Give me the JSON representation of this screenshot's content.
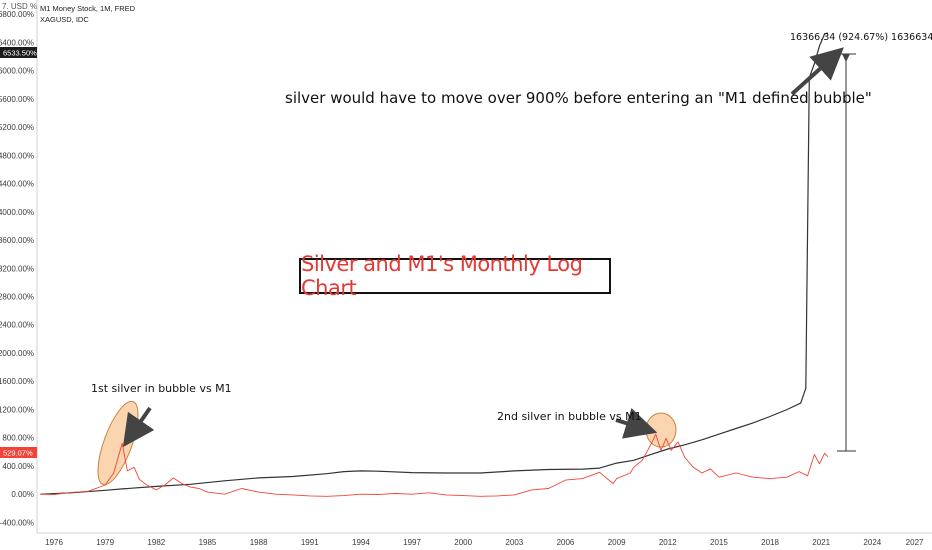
{
  "toolbar": {
    "menu_label": "7.",
    "currency_label": "USD",
    "percent_label": "%"
  },
  "legend": {
    "series_1": "M1 Money Stock, 1M, FRED",
    "series_2": "XAGUSD, IDC"
  },
  "badges": {
    "m1_value": "6533.50%",
    "silver_value": "529.07%"
  },
  "colors": {
    "m1": "#333333",
    "silver": "#f44336",
    "highlight": "#f8c796",
    "arrow": "#444444"
  },
  "annotations": {
    "title": "Silver and M1's Monthly Log Chart",
    "bubble_1": "1st silver in bubble vs M1",
    "bubble_2": "2nd silver in bubble vs M1",
    "headline": "silver would have to move over 900% before entering an \"M1 defined bubble\"",
    "measure": "16366.34 (924.67%) 1636634"
  },
  "chart_data": {
    "type": "line",
    "x_unit": "year",
    "y_unit": "percent",
    "xlim": [
      1975,
      2027.5
    ],
    "ylim": [
      -550,
      7000
    ],
    "x_ticks": [
      "1976",
      "1979",
      "1982",
      "1985",
      "1988",
      "1991",
      "1994",
      "1997",
      "2000",
      "2003",
      "2006",
      "2009",
      "2012",
      "2015",
      "2018",
      "2021",
      "2024",
      "2027"
    ],
    "y_ticks": [
      "6800.00%",
      "6400.00%",
      "6000.00%",
      "5600.00%",
      "5200.00%",
      "4800.00%",
      "4400.00%",
      "4000.00%",
      "3600.00%",
      "3200.00%",
      "2800.00%",
      "2400.00%",
      "2000.00%",
      "1600.00%",
      "1200.00%",
      "800.00%",
      "400.00%",
      "0.00%",
      "-400.00%"
    ],
    "y_tick_values": [
      6800,
      6400,
      6000,
      5600,
      5200,
      4800,
      4400,
      4000,
      3600,
      3200,
      2800,
      2400,
      2000,
      1600,
      1200,
      800,
      400,
      0,
      -400
    ],
    "series": [
      {
        "name": "M1 Money Stock, 1M, FRED",
        "points": [
          [
            1975.2,
            0
          ],
          [
            1977,
            20
          ],
          [
            1979,
            55
          ],
          [
            1980,
            75
          ],
          [
            1982,
            110
          ],
          [
            1984,
            140
          ],
          [
            1986,
            190
          ],
          [
            1988,
            230
          ],
          [
            1990,
            250
          ],
          [
            1992,
            290
          ],
          [
            1993,
            320
          ],
          [
            1994,
            330
          ],
          [
            1995,
            325
          ],
          [
            1997,
            305
          ],
          [
            1999,
            300
          ],
          [
            2001,
            300
          ],
          [
            2003,
            330
          ],
          [
            2005,
            350
          ],
          [
            2007,
            355
          ],
          [
            2008,
            370
          ],
          [
            2009,
            440
          ],
          [
            2010,
            480
          ],
          [
            2011,
            560
          ],
          [
            2012,
            640
          ],
          [
            2013,
            700
          ],
          [
            2014,
            770
          ],
          [
            2015,
            850
          ],
          [
            2016,
            930
          ],
          [
            2017,
            1010
          ],
          [
            2018,
            1100
          ],
          [
            2019,
            1200
          ],
          [
            2019.8,
            1290
          ],
          [
            2020.1,
            1500
          ],
          [
            2020.3,
            5900
          ],
          [
            2020.6,
            6100
          ],
          [
            2020.9,
            6350
          ],
          [
            2021.2,
            6520
          ],
          [
            2021.4,
            6533
          ]
        ]
      },
      {
        "name": "XAGUSD, IDC",
        "points": [
          [
            1975.2,
            0
          ],
          [
            1976,
            -5
          ],
          [
            1977,
            25
          ],
          [
            1978,
            40
          ],
          [
            1979,
            130
          ],
          [
            1979.5,
            300
          ],
          [
            1980,
            720
          ],
          [
            1980.3,
            330
          ],
          [
            1980.7,
            380
          ],
          [
            1981,
            210
          ],
          [
            1981.5,
            120
          ],
          [
            1982,
            60
          ],
          [
            1982.5,
            130
          ],
          [
            1983,
            230
          ],
          [
            1983.5,
            150
          ],
          [
            1984,
            100
          ],
          [
            1984.5,
            80
          ],
          [
            1985,
            30
          ],
          [
            1986,
            0
          ],
          [
            1987,
            80
          ],
          [
            1988,
            30
          ],
          [
            1989,
            0
          ],
          [
            1990,
            -10
          ],
          [
            1991,
            -25
          ],
          [
            1992,
            -30
          ],
          [
            1993,
            -20
          ],
          [
            1994,
            0
          ],
          [
            1995,
            -5
          ],
          [
            1996,
            10
          ],
          [
            1997,
            0
          ],
          [
            1998,
            20
          ],
          [
            1999,
            -10
          ],
          [
            2000,
            -20
          ],
          [
            2001,
            -30
          ],
          [
            2002,
            -25
          ],
          [
            2003,
            -10
          ],
          [
            2004,
            60
          ],
          [
            2005,
            80
          ],
          [
            2006,
            200
          ],
          [
            2007,
            220
          ],
          [
            2008,
            310
          ],
          [
            2008.8,
            150
          ],
          [
            2009,
            220
          ],
          [
            2009.8,
            300
          ],
          [
            2010,
            380
          ],
          [
            2010.5,
            480
          ],
          [
            2011,
            700
          ],
          [
            2011.3,
            850
          ],
          [
            2011.6,
            620
          ],
          [
            2011.9,
            790
          ],
          [
            2012.2,
            620
          ],
          [
            2012.6,
            740
          ],
          [
            2013,
            520
          ],
          [
            2013.5,
            380
          ],
          [
            2014,
            300
          ],
          [
            2014.5,
            360
          ],
          [
            2015,
            240
          ],
          [
            2016,
            300
          ],
          [
            2017,
            240
          ],
          [
            2018,
            220
          ],
          [
            2019,
            240
          ],
          [
            2019.7,
            320
          ],
          [
            2020.2,
            260
          ],
          [
            2020.6,
            560
          ],
          [
            2020.9,
            430
          ],
          [
            2021.2,
            580
          ],
          [
            2021.4,
            529
          ]
        ]
      }
    ],
    "grid": false,
    "legend_position": "top-left"
  }
}
